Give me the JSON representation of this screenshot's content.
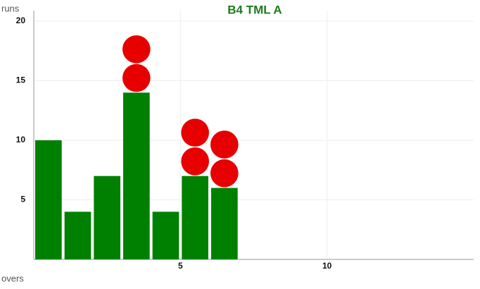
{
  "chart_data": {
    "type": "bar",
    "title": "B4 TML A",
    "x_label": "overs",
    "y_label": "runs",
    "x": [
      1,
      2,
      3,
      4,
      5,
      6,
      7
    ],
    "values": [
      10,
      4,
      7,
      14,
      4,
      7,
      6
    ],
    "wickets": [
      0,
      0,
      0,
      2,
      0,
      2,
      2
    ],
    "color": "#008000",
    "wicket_color": "#e60000",
    "title_color": "#1f7a1f",
    "xlim": [
      0,
      15
    ],
    "xticks": [
      5,
      10
    ],
    "ylim": [
      0,
      20
    ],
    "yticks": [
      5,
      10,
      15,
      20
    ],
    "grid": true
  }
}
